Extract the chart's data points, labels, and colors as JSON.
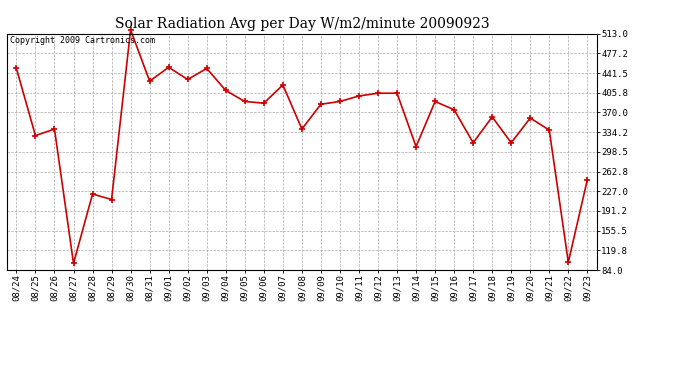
{
  "title": "Solar Radiation Avg per Day W/m2/minute 20090923",
  "copyright_text": "Copyright 2009 Cartronics.com",
  "dates": [
    "08/24",
    "08/25",
    "08/26",
    "08/27",
    "08/28",
    "08/29",
    "08/30",
    "08/31",
    "09/01",
    "09/02",
    "09/03",
    "09/04",
    "09/05",
    "09/06",
    "09/07",
    "09/08",
    "09/09",
    "09/10",
    "09/11",
    "09/12",
    "09/13",
    "09/14",
    "09/15",
    "09/16",
    "09/17",
    "09/18",
    "09/19",
    "09/20",
    "09/21",
    "09/22",
    "09/23"
  ],
  "values": [
    450,
    328,
    340,
    96,
    222,
    212,
    520,
    427,
    452,
    430,
    450,
    410,
    390,
    387,
    420,
    340,
    385,
    390,
    400,
    405,
    405,
    308,
    390,
    375,
    315,
    362,
    315,
    360,
    338,
    98,
    248
  ],
  "yticks": [
    84.0,
    119.8,
    155.5,
    191.2,
    227.0,
    262.8,
    298.5,
    334.2,
    370.0,
    405.8,
    441.5,
    477.2,
    513.0
  ],
  "ymin": 84.0,
  "ymax": 513.0,
  "line_color": "#cc0000",
  "marker": "+",
  "marker_size": 5,
  "marker_linewidth": 1.2,
  "line_width": 1.2,
  "bg_color": "#ffffff",
  "grid_color": "#aaaaaa",
  "title_fontsize": 10,
  "tick_fontsize": 6.5,
  "copyright_fontsize": 6
}
